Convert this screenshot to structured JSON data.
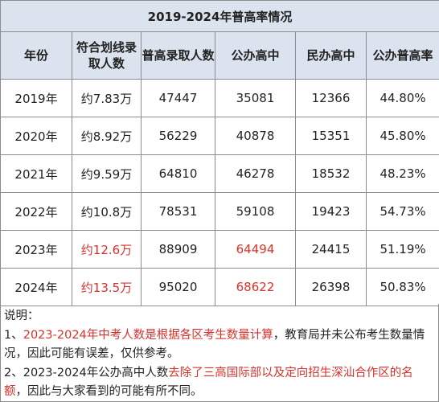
{
  "table": {
    "title": "2019-2024年普高率情况",
    "headers": [
      "年份",
      "符合划线录取人数",
      "普高录取人数",
      "公办高中",
      "民办高中",
      "公办普高率"
    ],
    "rows": [
      {
        "year": "2019年",
        "eligible": "约7.83万",
        "admitted": "47447",
        "public": "35081",
        "private": "12366",
        "rate": "44.80%"
      },
      {
        "year": "2020年",
        "eligible": "约8.92万",
        "admitted": "56229",
        "public": "40878",
        "private": "15351",
        "rate": "45.80%"
      },
      {
        "year": "2021年",
        "eligible": "约9.59万",
        "admitted": "64810",
        "public": "46278",
        "private": "18532",
        "rate": "48.23%"
      },
      {
        "year": "2022年",
        "eligible": "约10.8万",
        "admitted": "78531",
        "public": "59108",
        "private": "19423",
        "rate": "54.73%"
      },
      {
        "year": "2023年",
        "eligible": "约12.6万",
        "admitted": "88909",
        "public": "64494",
        "private": "24415",
        "rate": "51.19%"
      },
      {
        "year": "2024年",
        "eligible": "约13.5万",
        "admitted": "95020",
        "public": "68622",
        "private": "26398",
        "rate": "50.83%"
      }
    ],
    "highlight_color": "#d8322d",
    "header_bg": "#dbe3ef"
  },
  "notes": {
    "label": "说明：",
    "note1_prefix": "1、",
    "note1_red": "2023-2024年中考人数是根据各区考生数量计算",
    "note1_rest": "，教育局并未公布考生数量情况，因此可能有误差，仅供参考。",
    "note2_prefix": "2、2023-2024年公办高中人数",
    "note2_red": "去除了三高国际部以及定向招生深汕合作区的名额",
    "note2_rest": "，因此与大家看到的可能有所不同。"
  }
}
